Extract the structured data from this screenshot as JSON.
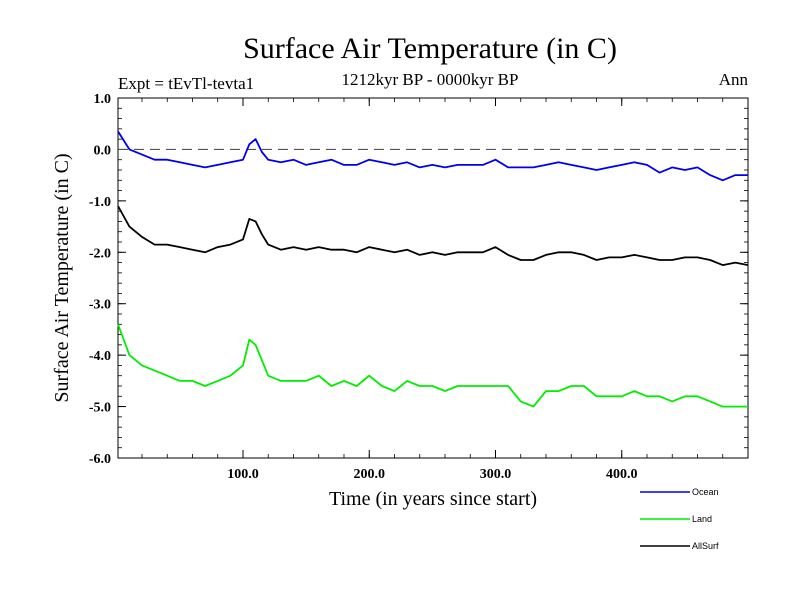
{
  "chart_data": {
    "type": "line",
    "title": "Surface Air Temperature (in C)",
    "subtitle_left": "Expt = tEvTl-tevta1",
    "subtitle_center": "1212kyr BP - 0000kyr BP",
    "subtitle_right": "Ann",
    "xlabel": "Time (in years since start)",
    "ylabel": "Surface Air Temperature (in C)",
    "xlim": [
      1,
      500
    ],
    "ylim": [
      -6.0,
      1.0
    ],
    "x_ticks": [
      100,
      200,
      300,
      400
    ],
    "x_tick_labels": [
      "100.0",
      "200.0",
      "300.0",
      "400.0"
    ],
    "y_ticks": [
      1.0,
      0.0,
      -1.0,
      -2.0,
      -3.0,
      -4.0,
      -5.0,
      -6.0
    ],
    "y_tick_labels": [
      "1.0",
      "0.0",
      "-1.0",
      "-2.0",
      "-3.0",
      "-4.0",
      "-5.0",
      "-6.0"
    ],
    "reference_line": 0.0,
    "grid": false,
    "legend_position": "bottom-right",
    "series": [
      {
        "name": "Ocean",
        "color": "#0000ee",
        "x": [
          1,
          10,
          20,
          30,
          40,
          50,
          60,
          70,
          80,
          90,
          100,
          105,
          110,
          115,
          120,
          130,
          140,
          150,
          160,
          170,
          180,
          190,
          200,
          210,
          220,
          230,
          240,
          250,
          260,
          270,
          280,
          290,
          300,
          310,
          320,
          330,
          340,
          350,
          360,
          370,
          380,
          390,
          400,
          410,
          420,
          430,
          440,
          450,
          460,
          470,
          480,
          490,
          500
        ],
        "values": [
          0.35,
          0.0,
          -0.1,
          -0.2,
          -0.2,
          -0.25,
          -0.3,
          -0.35,
          -0.3,
          -0.25,
          -0.2,
          0.1,
          0.2,
          -0.05,
          -0.2,
          -0.25,
          -0.2,
          -0.3,
          -0.25,
          -0.2,
          -0.3,
          -0.3,
          -0.2,
          -0.25,
          -0.3,
          -0.25,
          -0.35,
          -0.3,
          -0.35,
          -0.3,
          -0.3,
          -0.3,
          -0.2,
          -0.35,
          -0.35,
          -0.35,
          -0.3,
          -0.25,
          -0.3,
          -0.35,
          -0.4,
          -0.35,
          -0.3,
          -0.25,
          -0.3,
          -0.45,
          -0.35,
          -0.4,
          -0.35,
          -0.5,
          -0.6,
          -0.5,
          -0.5
        ]
      },
      {
        "name": "Land",
        "color": "#00ee00",
        "x": [
          1,
          10,
          20,
          30,
          40,
          50,
          60,
          70,
          80,
          90,
          100,
          105,
          110,
          115,
          120,
          130,
          140,
          150,
          160,
          170,
          180,
          190,
          200,
          210,
          220,
          230,
          240,
          250,
          260,
          270,
          280,
          290,
          300,
          310,
          320,
          330,
          340,
          350,
          360,
          370,
          380,
          390,
          400,
          410,
          420,
          430,
          440,
          450,
          460,
          470,
          480,
          490,
          500
        ],
        "values": [
          -3.4,
          -4.0,
          -4.2,
          -4.3,
          -4.4,
          -4.5,
          -4.5,
          -4.6,
          -4.5,
          -4.4,
          -4.2,
          -3.7,
          -3.8,
          -4.1,
          -4.4,
          -4.5,
          -4.5,
          -4.5,
          -4.4,
          -4.6,
          -4.5,
          -4.6,
          -4.4,
          -4.6,
          -4.7,
          -4.5,
          -4.6,
          -4.6,
          -4.7,
          -4.6,
          -4.6,
          -4.6,
          -4.6,
          -4.6,
          -4.9,
          -5.0,
          -4.7,
          -4.7,
          -4.6,
          -4.6,
          -4.8,
          -4.8,
          -4.8,
          -4.7,
          -4.8,
          -4.8,
          -4.9,
          -4.8,
          -4.8,
          -4.9,
          -5.0,
          -5.0,
          -5.0
        ]
      },
      {
        "name": "AllSurf",
        "color": "#000000",
        "x": [
          1,
          10,
          20,
          30,
          40,
          50,
          60,
          70,
          80,
          90,
          100,
          105,
          110,
          115,
          120,
          130,
          140,
          150,
          160,
          170,
          180,
          190,
          200,
          210,
          220,
          230,
          240,
          250,
          260,
          270,
          280,
          290,
          300,
          310,
          320,
          330,
          340,
          350,
          360,
          370,
          380,
          390,
          400,
          410,
          420,
          430,
          440,
          450,
          460,
          470,
          480,
          490,
          500
        ],
        "values": [
          -1.1,
          -1.5,
          -1.7,
          -1.85,
          -1.85,
          -1.9,
          -1.95,
          -2.0,
          -1.9,
          -1.85,
          -1.75,
          -1.35,
          -1.4,
          -1.65,
          -1.85,
          -1.95,
          -1.9,
          -1.95,
          -1.9,
          -1.95,
          -1.95,
          -2.0,
          -1.9,
          -1.95,
          -2.0,
          -1.95,
          -2.05,
          -2.0,
          -2.05,
          -2.0,
          -2.0,
          -2.0,
          -1.9,
          -2.05,
          -2.15,
          -2.15,
          -2.05,
          -2.0,
          -2.0,
          -2.05,
          -2.15,
          -2.1,
          -2.1,
          -2.05,
          -2.1,
          -2.15,
          -2.15,
          -2.1,
          -2.1,
          -2.15,
          -2.25,
          -2.2,
          -2.25
        ]
      }
    ]
  }
}
